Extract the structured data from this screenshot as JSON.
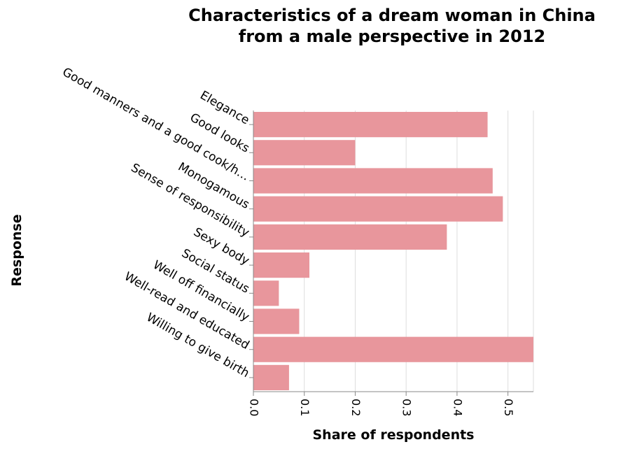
{
  "chart_data": {
    "type": "bar",
    "orientation": "horizontal",
    "title": "Characteristics of a dream woman in China from a male perspective in 2012",
    "title_lines": [
      "Characteristics of a dream woman in China",
      "from a male perspective in 2012"
    ],
    "xlabel": "Share of respondents",
    "ylabel": "Response",
    "categories": [
      "Elegance",
      "Good looks",
      "Good manners and a good cook/h…",
      "Monogamous",
      "Sense of responsibility",
      "Sexy body",
      "Social status",
      "Well off financially",
      "Well-read and educated",
      "Willing to give birth"
    ],
    "values": [
      0.46,
      0.2,
      0.47,
      0.49,
      0.38,
      0.11,
      0.05,
      0.09,
      0.55,
      0.07
    ],
    "xlim": [
      0,
      0.55
    ],
    "xticks": [
      0,
      0.1,
      0.2,
      0.3,
      0.4,
      0.5
    ],
    "xtick_labels": [
      "0.0",
      "0.1",
      "0.2",
      "0.3",
      "0.4",
      "0.5"
    ],
    "bar_color": "#e8969c",
    "grid": true,
    "legend": "none"
  }
}
